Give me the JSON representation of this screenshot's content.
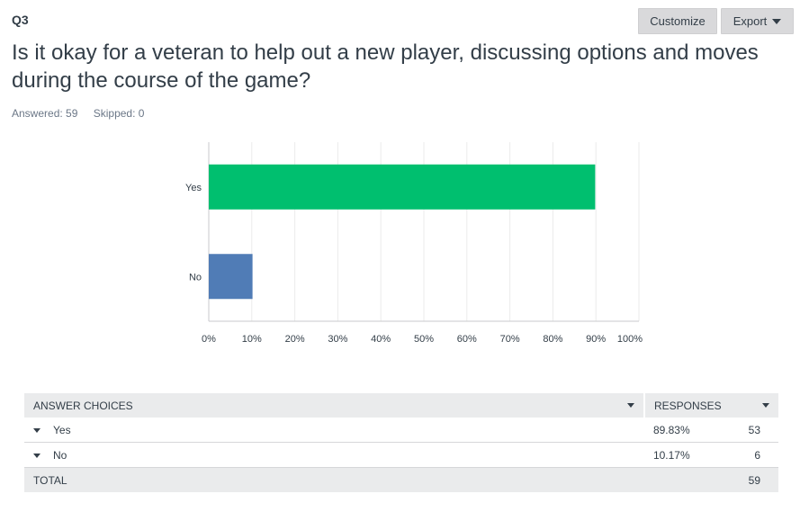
{
  "question": {
    "id": "Q3",
    "text": "Is it okay for a veteran to help out a new player, discussing options and moves during the course of the game?",
    "answered_label": "Answered: 59",
    "skipped_label": "Skipped: 0"
  },
  "toolbar": {
    "customize_label": "Customize",
    "export_label": "Export"
  },
  "chart_data": {
    "type": "bar",
    "orientation": "horizontal",
    "categories": [
      "Yes",
      "No"
    ],
    "values": [
      89.83,
      10.17
    ],
    "colors": [
      "#00bf6f",
      "#507cb6"
    ],
    "xlim": [
      0,
      100
    ],
    "xticks": [
      "0%",
      "10%",
      "20%",
      "30%",
      "40%",
      "50%",
      "60%",
      "70%",
      "80%",
      "90%",
      "100%"
    ],
    "grid": true
  },
  "table": {
    "headers": {
      "choices": "ANSWER CHOICES",
      "responses": "RESPONSES"
    },
    "rows": [
      {
        "choice": "Yes",
        "percent": "89.83%",
        "count": "53"
      },
      {
        "choice": "No",
        "percent": "10.17%",
        "count": "6"
      }
    ],
    "total_label": "TOTAL",
    "total_count": "59"
  }
}
